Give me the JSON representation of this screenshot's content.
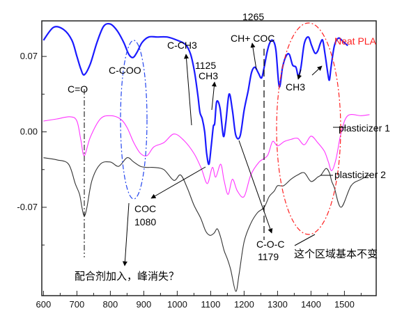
{
  "chart_data": {
    "type": "line",
    "title": "",
    "xlabel": "",
    "ylabel": "",
    "xlim": [
      595,
      1595
    ],
    "ylim": [
      -0.152,
      0.103
    ],
    "x_ticks": [
      "600",
      "700",
      "800",
      "900",
      "1000",
      "1100",
      "1200",
      "1300",
      "1400",
      "1500"
    ],
    "y_ticks": [
      "0.07",
      "0.00",
      "-0.07"
    ],
    "series": [
      {
        "name": "Neat PLA",
        "color": "#1a1aff",
        "x": [
          600,
          630,
          660,
          685,
          700,
          712,
          722,
          740,
          760,
          780,
          800,
          820,
          840,
          855,
          868,
          880,
          895,
          915,
          940,
          970,
          1000,
          1025,
          1040,
          1052,
          1062,
          1068,
          1075,
          1082,
          1088,
          1095,
          1102,
          1108,
          1112,
          1118,
          1128,
          1138,
          1145,
          1155,
          1165,
          1175,
          1188,
          1200,
          1212,
          1222,
          1232,
          1242,
          1252,
          1260,
          1268,
          1276,
          1285,
          1295,
          1305,
          1315,
          1325,
          1335,
          1345,
          1355,
          1362,
          1370,
          1380,
          1392,
          1402,
          1412,
          1420,
          1428,
          1435,
          1442,
          1450,
          1455,
          1460,
          1470,
          1482,
          1495,
          1510
        ],
        "values": [
          0.085,
          0.097,
          0.095,
          0.085,
          0.07,
          0.058,
          0.053,
          0.063,
          0.083,
          0.098,
          0.1,
          0.094,
          0.083,
          0.072,
          0.069,
          0.074,
          0.083,
          0.088,
          0.088,
          0.088,
          0.085,
          0.081,
          0.072,
          0.055,
          0.033,
          0.018,
          0.012,
          0.0,
          -0.02,
          -0.03,
          -0.012,
          0.005,
          0.008,
          0.028,
          0.022,
          -0.004,
          0.008,
          0.035,
          0.02,
          -0.003,
          -0.004,
          0.02,
          0.038,
          0.055,
          0.06,
          0.055,
          0.05,
          0.06,
          0.073,
          0.082,
          0.085,
          0.076,
          0.042,
          0.06,
          0.07,
          0.072,
          0.062,
          0.06,
          0.052,
          0.06,
          0.082,
          0.088,
          0.08,
          0.073,
          0.075,
          0.082,
          0.085,
          0.072,
          0.055,
          0.048,
          0.06,
          0.08,
          0.087,
          0.084,
          0.08
        ]
      },
      {
        "name": "plasticizer 1",
        "color": "#ff33ff",
        "x": [
          600,
          640,
          680,
          700,
          712,
          722,
          740,
          770,
          800,
          830,
          850,
          870,
          890,
          910,
          930,
          960,
          990,
          1020,
          1050,
          1072,
          1090,
          1105,
          1115,
          1130,
          1140,
          1152,
          1165,
          1180,
          1200,
          1220,
          1245,
          1270,
          1285,
          1300,
          1320,
          1340,
          1360,
          1380,
          1400,
          1420,
          1440,
          1452,
          1462,
          1475,
          1490,
          1510,
          1550,
          1575
        ],
        "values": [
          0.01,
          0.012,
          0.014,
          0.01,
          -0.008,
          -0.022,
          -0.005,
          0.012,
          0.015,
          0.012,
          0.004,
          -0.01,
          -0.02,
          -0.022,
          -0.014,
          -0.01,
          -0.002,
          -0.008,
          -0.02,
          -0.034,
          -0.048,
          -0.033,
          -0.042,
          -0.03,
          -0.045,
          -0.058,
          -0.044,
          -0.055,
          -0.06,
          -0.04,
          -0.028,
          -0.022,
          -0.009,
          -0.013,
          -0.009,
          -0.007,
          -0.006,
          -0.012,
          -0.004,
          -0.01,
          -0.018,
          -0.028,
          -0.036,
          -0.025,
          -0.001,
          0.015,
          0.015,
          0.016
        ]
      },
      {
        "name": "plasticizer 2",
        "color": "#333333",
        "x": [
          600,
          640,
          675,
          695,
          708,
          715,
          722,
          730,
          745,
          770,
          800,
          825,
          850,
          870,
          890,
          910,
          930,
          960,
          990,
          1010,
          1030,
          1050,
          1070,
          1085,
          1098,
          1110,
          1120,
          1130,
          1140,
          1150,
          1160,
          1175,
          1185,
          1200,
          1220,
          1240,
          1260,
          1275,
          1290,
          1300,
          1318,
          1340,
          1360,
          1380,
          1400,
          1420,
          1430,
          1445,
          1455,
          1462,
          1470,
          1490,
          1520,
          1550,
          1575
        ],
        "values": [
          -0.024,
          -0.026,
          -0.03,
          -0.048,
          -0.058,
          -0.07,
          -0.078,
          -0.07,
          -0.045,
          -0.03,
          -0.028,
          -0.032,
          -0.024,
          -0.028,
          -0.032,
          -0.033,
          -0.033,
          -0.035,
          -0.045,
          -0.04,
          -0.052,
          -0.068,
          -0.08,
          -0.092,
          -0.096,
          -0.094,
          -0.09,
          -0.098,
          -0.11,
          -0.118,
          -0.128,
          -0.148,
          -0.132,
          -0.102,
          -0.085,
          -0.075,
          -0.07,
          -0.06,
          -0.055,
          -0.05,
          -0.05,
          -0.044,
          -0.04,
          -0.038,
          -0.046,
          -0.042,
          -0.04,
          -0.034,
          -0.038,
          -0.046,
          -0.052,
          -0.07,
          -0.05,
          -0.044,
          -0.04
        ]
      }
    ],
    "annotations": [
      "C=O",
      "C-COO",
      "C-CH3",
      "1125",
      "CH3",
      "1265",
      "CH+ COC",
      "Neat PLA",
      "CH3",
      "plasticizer 1",
      "plasticizer 2",
      "COC",
      "1080",
      "C-O-C",
      "1179",
      "这个区域基本不变",
      "配合剂加入，峰消失？"
    ],
    "grid": false
  }
}
